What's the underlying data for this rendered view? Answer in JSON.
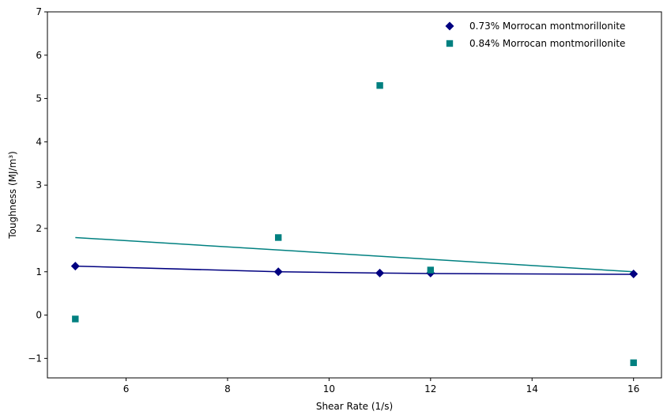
{
  "chart_data": {
    "type": "scatter",
    "title": "",
    "xlabel": "Shear Rate (1/s)",
    "ylabel": "Toughness (MJ/m³)",
    "xlim": [
      4.45,
      16.55
    ],
    "ylim": [
      -1.45,
      7.0
    ],
    "xticks": [
      6,
      8,
      10,
      12,
      14,
      16
    ],
    "yticks": [
      -1,
      0,
      1,
      2,
      3,
      4,
      5,
      6,
      7
    ],
    "ytick_labels": [
      "−1",
      "0",
      "1",
      "2",
      "3",
      "4",
      "5",
      "6",
      "7"
    ],
    "grid": false,
    "legend_position": "top-right",
    "series": [
      {
        "name": "0.73% Morrocan montmorillonite",
        "marker": "diamond",
        "color": "#000080",
        "x": [
          5,
          9,
          11,
          12,
          16
        ],
        "y": [
          1.13,
          1.0,
          0.97,
          0.97,
          0.95
        ],
        "fit_line": {
          "x": [
            5,
            9,
            11,
            12,
            16
          ],
          "y": [
            1.13,
            1.0,
            0.97,
            0.96,
            0.94
          ]
        }
      },
      {
        "name": "0.84% Morrocan montmorillonite",
        "marker": "square",
        "color": "#008080",
        "x": [
          5,
          9,
          11,
          12,
          16
        ],
        "y": [
          -0.09,
          1.79,
          5.3,
          1.04,
          -1.1
        ],
        "fit_line": {
          "x": [
            5,
            16
          ],
          "y": [
            1.79,
            1.0
          ]
        }
      }
    ]
  }
}
